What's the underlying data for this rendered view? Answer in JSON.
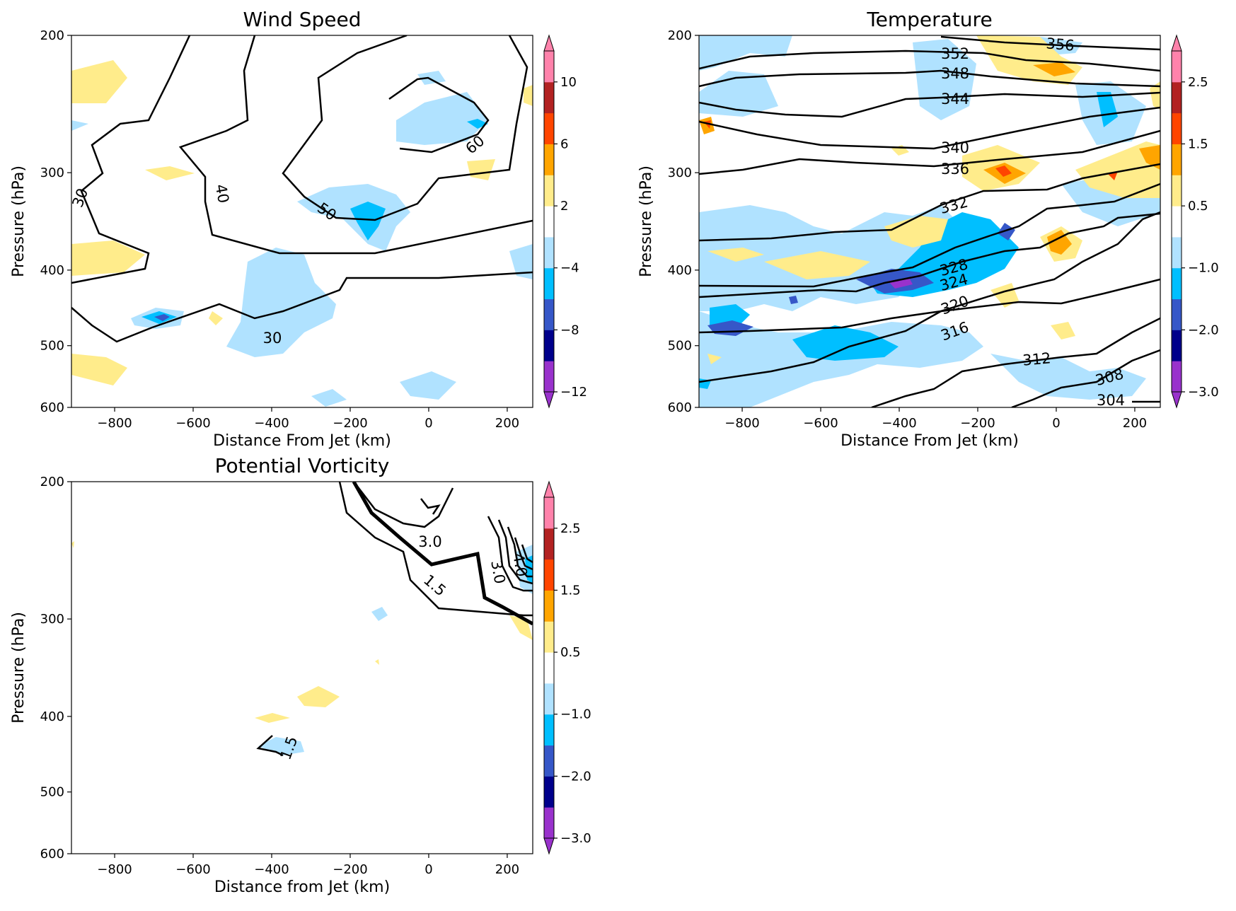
{
  "colorbar_colors": [
    "#9932cc",
    "#00008b",
    "#3657c8",
    "#00bfff",
    "#b0e2ff",
    "#ffffff",
    "#ffec8b",
    "#ffa500",
    "#ff4500",
    "#b22222",
    "#ff82ab"
  ],
  "panels": [
    {
      "id": "wind",
      "title": "Wind Speed",
      "xlabel": "Distance From Jet (km)",
      "ylabel": "Pressure (hPa)",
      "x_ticks": [
        "−800",
        "−600",
        "−400",
        "−200",
        "0",
        "200"
      ],
      "y_ticks": [
        "200",
        "300",
        "400",
        "500",
        "600"
      ],
      "colorbar_ticks": [
        "−12",
        "−8",
        "−4",
        "2",
        "6",
        "10"
      ],
      "contour_labels": [
        "30",
        "40",
        "50",
        "60",
        "30"
      ]
    },
    {
      "id": "temp",
      "title": "Temperature",
      "xlabel": "Distance From Jet (km)",
      "ylabel": "Pressure (hPa)",
      "x_ticks": [
        "−800",
        "−600",
        "−400",
        "−200",
        "0",
        "200"
      ],
      "y_ticks": [
        "200",
        "300",
        "400",
        "500",
        "600"
      ],
      "colorbar_ticks": [
        "−3.0",
        "−2.0",
        "−1.0",
        "0.5",
        "1.5",
        "2.5"
      ],
      "contour_labels": [
        "356",
        "352",
        "348",
        "344",
        "340",
        "336",
        "332",
        "328",
        "324",
        "320",
        "316",
        "312",
        "308",
        "304"
      ]
    },
    {
      "id": "pv",
      "title": "Potential Vorticity",
      "xlabel": "Distance from Jet (km)",
      "ylabel": "Pressure (hPa)",
      "x_ticks": [
        "−800",
        "−600",
        "−400",
        "−200",
        "0",
        "200"
      ],
      "y_ticks": [
        "200",
        "300",
        "400",
        "500",
        "600"
      ],
      "colorbar_ticks": [
        "−3.0",
        "−2.0",
        "−1.0",
        "0.5",
        "1.5",
        "2.5"
      ],
      "contour_labels": [
        "3.0",
        "1.5",
        "3.0",
        "4.0",
        "1.5"
      ]
    }
  ],
  "chart_data": [
    {
      "type": "contour",
      "title": "Wind Speed",
      "xlabel": "Distance From Jet (km)",
      "ylabel": "Pressure (hPa)",
      "xlim": [
        -910,
        265
      ],
      "ylim": [
        600,
        200
      ],
      "x_ticks": [
        -800,
        -600,
        -400,
        -200,
        0,
        200
      ],
      "y_ticks": [
        200,
        300,
        400,
        500,
        600
      ],
      "yscale": "log",
      "colorbar_levels": [
        -12,
        -10,
        -8,
        -6,
        -4,
        -2,
        2,
        4,
        6,
        8,
        10,
        12
      ],
      "colorbar_ticks": [
        -12,
        -8,
        -4,
        2,
        6,
        10
      ],
      "contour_levels": [
        30,
        40,
        50,
        60
      ]
    },
    {
      "type": "contour",
      "title": "Temperature",
      "xlabel": "Distance From Jet (km)",
      "ylabel": "Pressure (hPa)",
      "xlim": [
        -910,
        265
      ],
      "ylim": [
        600,
        200
      ],
      "x_ticks": [
        -800,
        -600,
        -400,
        -200,
        0,
        200
      ],
      "y_ticks": [
        200,
        300,
        400,
        500,
        600
      ],
      "yscale": "log",
      "colorbar_levels": [
        -3.0,
        -2.5,
        -2.0,
        -1.5,
        -1.0,
        -0.5,
        0.5,
        1.0,
        1.5,
        2.0,
        2.5,
        3.0
      ],
      "colorbar_ticks": [
        -3.0,
        -2.0,
        -1.0,
        0.5,
        1.5,
        2.5
      ],
      "contour_levels": [
        304,
        308,
        312,
        316,
        320,
        324,
        328,
        332,
        336,
        340,
        344,
        348,
        352,
        356
      ]
    },
    {
      "type": "contour",
      "title": "Potential Vorticity",
      "xlabel": "Distance from Jet (km)",
      "ylabel": "Pressure (hPa)",
      "xlim": [
        -910,
        265
      ],
      "ylim": [
        600,
        200
      ],
      "x_ticks": [
        -800,
        -600,
        -400,
        -200,
        0,
        200
      ],
      "y_ticks": [
        200,
        300,
        400,
        500,
        600
      ],
      "yscale": "log",
      "colorbar_levels": [
        -3.0,
        -2.5,
        -2.0,
        -1.5,
        -1.0,
        -0.5,
        0.5,
        1.0,
        1.5,
        2.0,
        2.5,
        3.0
      ],
      "colorbar_ticks": [
        -3.0,
        -2.0,
        -1.0,
        0.5,
        1.5,
        2.5
      ],
      "contour_levels": [
        1.5,
        3.0,
        4.0,
        5.0,
        6.0
      ]
    }
  ]
}
